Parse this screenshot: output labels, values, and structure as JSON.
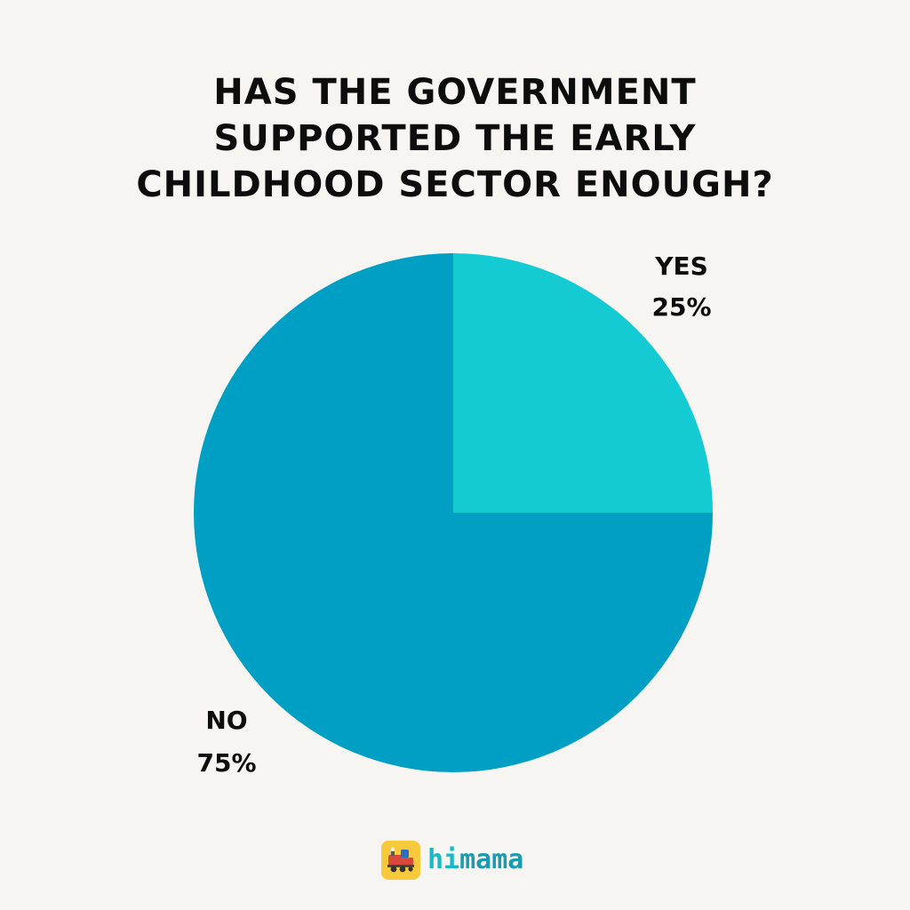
{
  "title_lines": [
    "HAS THE GOVERNMENT",
    "SUPPORTED THE EARLY",
    "CHILDHOOD SECTOR ENOUGH?"
  ],
  "chart_data": {
    "type": "pie",
    "title": "HAS THE GOVERNMENT SUPPORTED THE EARLY CHILDHOOD SECTOR ENOUGH?",
    "slices": [
      {
        "label": "YES",
        "value": 25,
        "value_label": "25%",
        "color": "#14cbd4"
      },
      {
        "label": "NO",
        "value": 75,
        "value_label": "75%",
        "color": "#029fc5"
      }
    ],
    "start": "12 o'clock",
    "direction": "clockwise"
  },
  "logo": {
    "hi": "hi",
    "mama": "mama",
    "icon": "train-icon",
    "colors": {
      "badge": "#f8c93b",
      "hi": "#16b9c8",
      "mama": "#1a9bb0"
    }
  }
}
